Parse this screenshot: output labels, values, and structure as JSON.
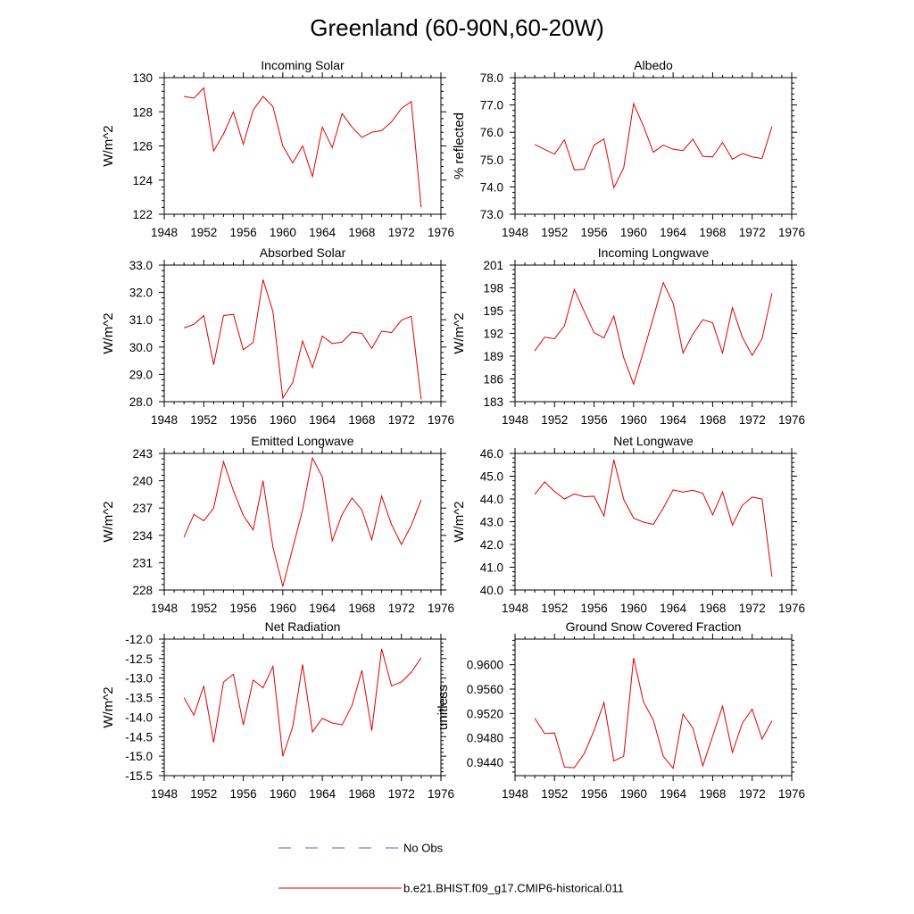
{
  "figure_title": "Greenland (60-90N,60-20W)",
  "chart_data": [
    {
      "type": "line",
      "title": "Incoming Solar",
      "ylabel": "W/m^2",
      "xlim": [
        1948,
        1976
      ],
      "xticks": [
        1948,
        1952,
        1956,
        1960,
        1964,
        1968,
        1972,
        1976
      ],
      "xtick_labels": [
        "1948",
        "1952",
        "1956",
        "1960",
        "1964",
        "1968",
        "1972",
        "1976"
      ],
      "ylim": [
        122,
        130
      ],
      "yticks": [
        122,
        124,
        126,
        128,
        130
      ],
      "ytick_labels": [
        "122",
        "124",
        "126",
        "128",
        "130"
      ],
      "x": [
        1950,
        1951,
        1952,
        1953,
        1954,
        1955,
        1956,
        1957,
        1958,
        1959,
        1960,
        1961,
        1962,
        1963,
        1964,
        1965,
        1966,
        1967,
        1968,
        1969,
        1970,
        1971,
        1972,
        1973,
        1974
      ],
      "series": [
        {
          "name": "b.e21.BHIST.f09_g17.CMIP6-historical.011",
          "color": "#e00000",
          "values": [
            128.9,
            128.8,
            129.4,
            125.7,
            126.7,
            128.0,
            126.1,
            128.1,
            128.9,
            128.3,
            126.0,
            125.0,
            126.0,
            124.2,
            127.1,
            125.9,
            127.9,
            127.1,
            126.5,
            126.8,
            126.9,
            127.4,
            128.2,
            128.6,
            122.4
          ]
        }
      ]
    },
    {
      "type": "line",
      "title": "Albedo",
      "ylabel": "% reflected",
      "xlim": [
        1948,
        1976
      ],
      "xticks": [
        1948,
        1952,
        1956,
        1960,
        1964,
        1968,
        1972,
        1976
      ],
      "xtick_labels": [
        "1948",
        "1952",
        "1956",
        "1960",
        "1964",
        "1968",
        "1972",
        "1976"
      ],
      "ylim": [
        73.0,
        78.0
      ],
      "yticks": [
        73.0,
        74.0,
        75.0,
        76.0,
        77.0,
        78.0
      ],
      "ytick_labels": [
        "73.0",
        "74.0",
        "75.0",
        "76.0",
        "77.0",
        "78.0"
      ],
      "x": [
        1950,
        1951,
        1952,
        1953,
        1954,
        1955,
        1956,
        1957,
        1958,
        1959,
        1960,
        1961,
        1962,
        1963,
        1964,
        1965,
        1966,
        1967,
        1968,
        1969,
        1970,
        1971,
        1972,
        1973,
        1974
      ],
      "series": [
        {
          "name": "b.e21.BHIST.f09_g17.CMIP6-historical.011",
          "color": "#e00000",
          "values": [
            75.55,
            75.37,
            75.2,
            75.72,
            74.62,
            74.65,
            75.53,
            75.76,
            73.97,
            74.7,
            77.05,
            76.22,
            75.27,
            75.53,
            75.38,
            75.33,
            75.75,
            75.12,
            75.1,
            75.63,
            75.01,
            75.22,
            75.1,
            75.04,
            76.21
          ]
        }
      ]
    },
    {
      "type": "line",
      "title": "Absorbed Solar",
      "ylabel": "W/m^2",
      "xlim": [
        1948,
        1976
      ],
      "xticks": [
        1948,
        1952,
        1956,
        1960,
        1964,
        1968,
        1972,
        1976
      ],
      "xtick_labels": [
        "1948",
        "1952",
        "1956",
        "1960",
        "1964",
        "1968",
        "1972",
        "1976"
      ],
      "ylim": [
        28.0,
        33.0
      ],
      "yticks": [
        28.0,
        29.0,
        30.0,
        31.0,
        32.0,
        33.0
      ],
      "ytick_labels": [
        "28.0",
        "29.0",
        "30.0",
        "31.0",
        "32.0",
        "33.0"
      ],
      "x": [
        1950,
        1951,
        1952,
        1953,
        1954,
        1955,
        1956,
        1957,
        1958,
        1959,
        1960,
        1961,
        1962,
        1963,
        1964,
        1965,
        1966,
        1967,
        1968,
        1969,
        1970,
        1971,
        1972,
        1973,
        1974
      ],
      "series": [
        {
          "name": "b.e21.BHIST.f09_g17.CMIP6-historical.011",
          "color": "#e00000",
          "values": [
            30.7,
            30.83,
            31.15,
            29.35,
            31.15,
            31.2,
            29.9,
            30.17,
            32.47,
            31.3,
            28.13,
            28.7,
            30.22,
            29.25,
            30.4,
            30.13,
            30.18,
            30.55,
            30.5,
            29.95,
            30.58,
            30.53,
            30.98,
            31.13,
            28.08
          ]
        }
      ]
    },
    {
      "type": "line",
      "title": "Incoming Longwave",
      "ylabel": "W/m^2",
      "xlim": [
        1948,
        1976
      ],
      "xticks": [
        1948,
        1952,
        1956,
        1960,
        1964,
        1968,
        1972,
        1976
      ],
      "xtick_labels": [
        "1948",
        "1952",
        "1956",
        "1960",
        "1964",
        "1968",
        "1972",
        "1976"
      ],
      "ylim": [
        183,
        201
      ],
      "yticks": [
        183,
        186,
        189,
        192,
        195,
        198,
        201
      ],
      "ytick_labels": [
        "183",
        "186",
        "189",
        "192",
        "195",
        "198",
        "201"
      ],
      "x": [
        1950,
        1951,
        1952,
        1953,
        1954,
        1955,
        1956,
        1957,
        1958,
        1959,
        1960,
        1961,
        1962,
        1963,
        1964,
        1965,
        1966,
        1967,
        1968,
        1969,
        1970,
        1971,
        1972,
        1973,
        1974
      ],
      "series": [
        {
          "name": "b.e21.BHIST.f09_g17.CMIP6-historical.011",
          "color": "#e00000",
          "values": [
            189.7,
            191.5,
            191.3,
            193.0,
            197.8,
            194.9,
            192.1,
            191.4,
            194.3,
            188.8,
            185.3,
            189.6,
            194.1,
            198.7,
            196.0,
            189.4,
            191.9,
            193.8,
            193.4,
            189.4,
            195.4,
            191.5,
            189.1,
            191.3,
            197.3
          ]
        }
      ]
    },
    {
      "type": "line",
      "title": "Emitted Longwave",
      "ylabel": "W/m^2",
      "xlim": [
        1948,
        1976
      ],
      "xticks": [
        1948,
        1952,
        1956,
        1960,
        1964,
        1968,
        1972,
        1976
      ],
      "xtick_labels": [
        "1948",
        "1952",
        "1956",
        "1960",
        "1964",
        "1968",
        "1972",
        "1976"
      ],
      "ylim": [
        228,
        243
      ],
      "yticks": [
        228,
        231,
        234,
        237,
        240,
        243
      ],
      "ytick_labels": [
        "228",
        "231",
        "234",
        "237",
        "240",
        "243"
      ],
      "x": [
        1950,
        1951,
        1952,
        1953,
        1954,
        1955,
        1956,
        1957,
        1958,
        1959,
        1960,
        1961,
        1962,
        1963,
        1964,
        1965,
        1966,
        1967,
        1968,
        1969,
        1970,
        1971,
        1972,
        1973,
        1974
      ],
      "series": [
        {
          "name": "b.e21.BHIST.f09_g17.CMIP6-historical.011",
          "color": "#e00000",
          "values": [
            233.8,
            236.3,
            235.6,
            237.0,
            242.1,
            238.9,
            236.2,
            234.6,
            240.0,
            232.7,
            228.4,
            232.6,
            236.8,
            242.5,
            240.4,
            233.4,
            236.3,
            238.1,
            236.8,
            233.5,
            238.3,
            235.2,
            233.0,
            235.1,
            237.9
          ]
        }
      ]
    },
    {
      "type": "line",
      "title": "Net Longwave",
      "ylabel": "W/m^2",
      "xlim": [
        1948,
        1976
      ],
      "xticks": [
        1948,
        1952,
        1956,
        1960,
        1964,
        1968,
        1972,
        1976
      ],
      "xtick_labels": [
        "1948",
        "1952",
        "1956",
        "1960",
        "1964",
        "1968",
        "1972",
        "1976"
      ],
      "ylim": [
        40.0,
        46.0
      ],
      "yticks": [
        40.0,
        41.0,
        42.0,
        43.0,
        44.0,
        45.0,
        46.0
      ],
      "ytick_labels": [
        "40.0",
        "41.0",
        "42.0",
        "43.0",
        "44.0",
        "45.0",
        "46.0"
      ],
      "x": [
        1950,
        1951,
        1952,
        1953,
        1954,
        1955,
        1956,
        1957,
        1958,
        1959,
        1960,
        1961,
        1962,
        1963,
        1964,
        1965,
        1966,
        1967,
        1968,
        1969,
        1970,
        1971,
        1972,
        1973,
        1974
      ],
      "series": [
        {
          "name": "b.e21.BHIST.f09_g17.CMIP6-historical.011",
          "color": "#e00000",
          "values": [
            44.2,
            44.75,
            44.33,
            44.0,
            44.22,
            44.1,
            44.12,
            43.25,
            45.72,
            43.98,
            43.16,
            42.98,
            42.88,
            43.6,
            44.4,
            44.3,
            44.38,
            44.25,
            43.3,
            44.3,
            42.85,
            43.72,
            44.08,
            44.0,
            40.58
          ]
        }
      ]
    },
    {
      "type": "line",
      "title": "Net Radiation",
      "ylabel": "W/m^2",
      "xlim": [
        1948,
        1976
      ],
      "xticks": [
        1948,
        1952,
        1956,
        1960,
        1964,
        1968,
        1972,
        1976
      ],
      "xtick_labels": [
        "1948",
        "1952",
        "1956",
        "1960",
        "1964",
        "1968",
        "1972",
        "1976"
      ],
      "ylim": [
        -15.5,
        -12.0
      ],
      "yticks": [
        -15.5,
        -15.0,
        -14.5,
        -14.0,
        -13.5,
        -13.0,
        -12.5,
        -12.0
      ],
      "ytick_labels": [
        "-15.5",
        "-15.0",
        "-14.5",
        "-14.0",
        "-13.5",
        "-13.0",
        "-12.5",
        "-12.0"
      ],
      "x": [
        1950,
        1951,
        1952,
        1953,
        1954,
        1955,
        1956,
        1957,
        1958,
        1959,
        1960,
        1961,
        1962,
        1963,
        1964,
        1965,
        1966,
        1967,
        1968,
        1969,
        1970,
        1971,
        1972,
        1973,
        1974
      ],
      "series": [
        {
          "name": "b.e21.BHIST.f09_g17.CMIP6-historical.011",
          "color": "#e00000",
          "values": [
            -13.5,
            -13.95,
            -13.2,
            -14.65,
            -13.1,
            -12.9,
            -14.2,
            -13.05,
            -13.25,
            -12.7,
            -15.0,
            -14.25,
            -12.65,
            -14.38,
            -14.03,
            -14.15,
            -14.2,
            -13.7,
            -12.8,
            -14.35,
            -12.25,
            -13.2,
            -13.1,
            -12.85,
            -12.48
          ]
        }
      ]
    },
    {
      "type": "line",
      "title": "Ground Snow Covered Fraction",
      "ylabel": "unitless",
      "xlim": [
        1948,
        1976
      ],
      "xticks": [
        1948,
        1952,
        1956,
        1960,
        1964,
        1968,
        1972,
        1976
      ],
      "xtick_labels": [
        "1948",
        "1952",
        "1956",
        "1960",
        "1964",
        "1968",
        "1972",
        "1976"
      ],
      "ylim": [
        0.9418,
        0.9642
      ],
      "yticks": [
        0.944,
        0.948,
        0.952,
        0.956,
        0.96
      ],
      "ytick_labels": [
        "0.9440",
        "0.9480",
        "0.9520",
        "0.9560",
        "0.9600"
      ],
      "x": [
        1950,
        1951,
        1952,
        1953,
        1954,
        1955,
        1956,
        1957,
        1958,
        1959,
        1960,
        1961,
        1962,
        1963,
        1964,
        1965,
        1966,
        1967,
        1968,
        1969,
        1970,
        1971,
        1972,
        1973,
        1974
      ],
      "series": [
        {
          "name": "b.e21.BHIST.f09_g17.CMIP6-historical.011",
          "color": "#e00000",
          "values": [
            0.9512,
            0.9487,
            0.9488,
            0.9432,
            0.9431,
            0.9454,
            0.9492,
            0.9538,
            0.9442,
            0.945,
            0.9611,
            0.9539,
            0.9509,
            0.945,
            0.943,
            0.9519,
            0.9496,
            0.9434,
            0.9483,
            0.9532,
            0.9456,
            0.9504,
            0.9527,
            0.9478,
            0.9508
          ]
        }
      ]
    }
  ],
  "legend": [
    {
      "label": "No Obs",
      "color": "#5b5bd6",
      "style": "dashed"
    },
    {
      "label": "b.e21.BHIST.f09_g17.CMIP6-historical.011",
      "color": "#e00000",
      "style": "solid"
    }
  ]
}
